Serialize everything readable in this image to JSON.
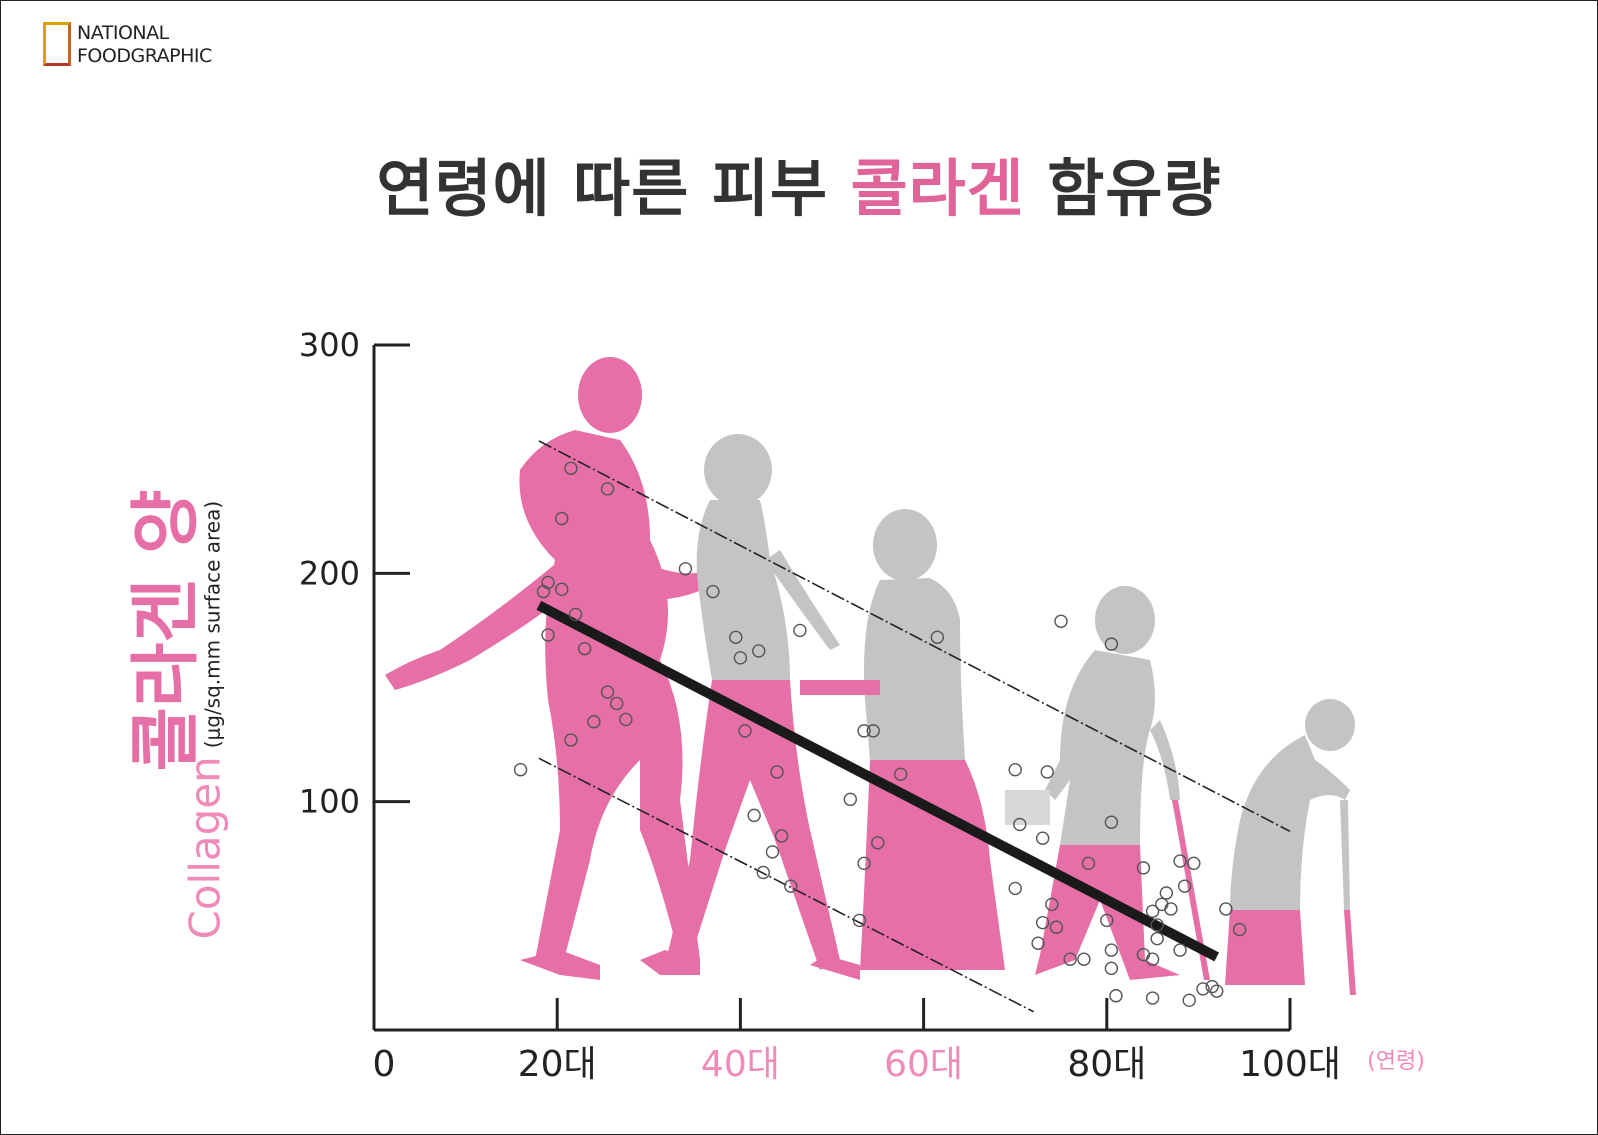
{
  "logo": {
    "line1": "NATIONAL",
    "line2": "FOODGRAPHIC"
  },
  "title": {
    "before": "연령에 따른 피부 ",
    "highlight": "콜라겐",
    "after": " 함유량"
  },
  "colors": {
    "pink": "#e56fa6",
    "light_pink": "#f08ab8",
    "gray": "#c4c4c4",
    "axis": "#222222",
    "trend": "#1a1a1a"
  },
  "chart_data": {
    "type": "scatter",
    "ylabel_ko": "콜라겐 양",
    "ylabel_en": "Collagen",
    "ylabel_unit": "(μg/sq.mm surface area)",
    "xlabel_unit": "(연령)",
    "ylim": [
      0,
      300
    ],
    "xlim": [
      0,
      100
    ],
    "yticks": [
      {
        "value": 100,
        "label": "100"
      },
      {
        "value": 200,
        "label": "200"
      },
      {
        "value": 300,
        "label": "300"
      }
    ],
    "xticks": [
      {
        "value": 0,
        "label": "0",
        "highlight": false,
        "tick": false
      },
      {
        "value": 20,
        "label": "20대",
        "highlight": false,
        "tick": true
      },
      {
        "value": 40,
        "label": "40대",
        "highlight": true,
        "tick": true
      },
      {
        "value": 60,
        "label": "60대",
        "highlight": true,
        "tick": true
      },
      {
        "value": 80,
        "label": "80대",
        "highlight": false,
        "tick": true
      },
      {
        "value": 100,
        "label": "100대",
        "highlight": false,
        "tick": true
      }
    ],
    "trend_line": {
      "x": [
        18,
        92
      ],
      "y": [
        186,
        32
      ]
    },
    "upper_bound": {
      "x": [
        18,
        100
      ],
      "y": [
        258,
        87
      ]
    },
    "lower_bound": {
      "x": [
        18,
        72
      ],
      "y": [
        119,
        8
      ]
    },
    "points": [
      [
        21.5,
        246
      ],
      [
        25.5,
        237
      ],
      [
        20.5,
        224
      ],
      [
        19,
        196
      ],
      [
        18.5,
        192
      ],
      [
        20.5,
        193
      ],
      [
        22,
        182
      ],
      [
        19,
        173
      ],
      [
        23,
        167
      ],
      [
        25.5,
        148
      ],
      [
        26.5,
        143
      ],
      [
        27.5,
        136
      ],
      [
        24,
        135
      ],
      [
        21.5,
        127
      ],
      [
        16,
        114
      ],
      [
        34,
        202
      ],
      [
        37,
        192
      ],
      [
        39.5,
        172
      ],
      [
        40,
        163
      ],
      [
        42,
        166
      ],
      [
        46.5,
        175
      ],
      [
        40.5,
        131
      ],
      [
        44,
        113
      ],
      [
        41.5,
        94
      ],
      [
        44.5,
        85
      ],
      [
        43.5,
        78
      ],
      [
        42.5,
        69
      ],
      [
        45.5,
        63
      ],
      [
        52,
        101
      ],
      [
        53.5,
        131
      ],
      [
        54.5,
        131
      ],
      [
        57.5,
        112
      ],
      [
        53.5,
        73
      ],
      [
        55,
        82
      ],
      [
        53,
        48
      ],
      [
        61.5,
        172
      ],
      [
        75,
        179
      ],
      [
        80.5,
        169
      ],
      [
        70,
        114
      ],
      [
        73.5,
        113
      ],
      [
        70.5,
        90
      ],
      [
        73,
        84
      ],
      [
        70,
        62
      ],
      [
        74,
        55
      ],
      [
        73,
        47
      ],
      [
        74.5,
        45
      ],
      [
        72.5,
        38
      ],
      [
        80.5,
        91
      ],
      [
        78,
        73
      ],
      [
        84,
        71
      ],
      [
        88,
        74
      ],
      [
        89.5,
        73
      ],
      [
        88.5,
        63
      ],
      [
        86.5,
        60
      ],
      [
        86,
        55
      ],
      [
        87,
        53
      ],
      [
        85,
        52
      ],
      [
        80,
        48
      ],
      [
        85.5,
        46
      ],
      [
        85.5,
        40
      ],
      [
        80.5,
        35
      ],
      [
        84,
        33
      ],
      [
        85,
        31
      ],
      [
        88,
        35
      ],
      [
        76,
        31
      ],
      [
        77.5,
        31
      ],
      [
        80.5,
        27
      ],
      [
        81,
        15
      ],
      [
        85,
        14
      ],
      [
        89,
        13
      ],
      [
        90.5,
        18
      ],
      [
        91.5,
        19
      ],
      [
        92,
        17
      ],
      [
        93,
        53
      ],
      [
        94.5,
        44
      ]
    ]
  }
}
